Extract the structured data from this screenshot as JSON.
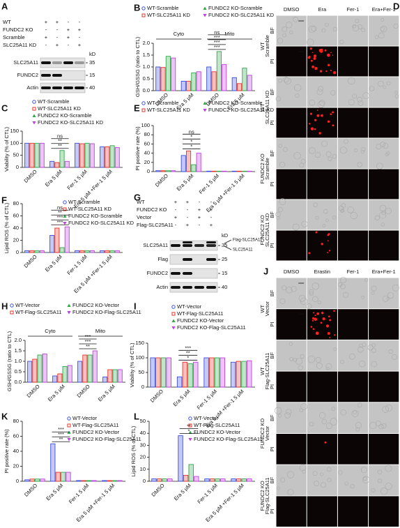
{
  "blots": [
    {
      "panel": "A",
      "unit": "kD",
      "conditions": [
        {
          "label": "WT",
          "signs": [
            "+",
            "+",
            "-",
            "-"
          ]
        },
        {
          "label": "FUNDC2 KO",
          "signs": [
            "-",
            "-",
            "+",
            "+"
          ]
        },
        {
          "label": "Scramble",
          "signs": [
            "+",
            "-",
            "+",
            "-"
          ]
        },
        {
          "label": "SLC25A11 KD",
          "signs": [
            "-",
            "+",
            "-",
            "+"
          ]
        }
      ],
      "bands": [
        {
          "label": "SLC25A11",
          "kd": 35
        },
        {
          "label": "FUNDC2",
          "kd": 15
        },
        {
          "label": "Actin",
          "kd": 40
        }
      ]
    },
    {
      "panel": "G",
      "unit": "kD",
      "conditions": [
        {
          "label": "WT",
          "signs": [
            "+",
            "+",
            "-",
            "-"
          ]
        },
        {
          "label": "FUNDC2 KO",
          "signs": [
            "-",
            "-",
            "+",
            "+"
          ]
        },
        {
          "label": "Vector",
          "signs": [
            "+",
            "-",
            "+",
            "-"
          ]
        },
        {
          "label": "Flag-SLC25A11",
          "signs": [
            "-",
            "+",
            "-",
            "+"
          ]
        }
      ],
      "bands": [
        {
          "label": "SLC25A11",
          "kd": 35
        },
        {
          "label": "Flag",
          "kd": 25
        },
        {
          "label": "FUNDC2",
          "kd": 15
        },
        {
          "label": "Actin",
          "kd": 40
        }
      ],
      "side_labels": [
        "Flag-SLC25A11",
        "SLC25A11"
      ]
    }
  ],
  "image_grids": [
    {
      "panel": "D",
      "columns": [
        "DMSO",
        "Era",
        "Fer-1",
        "Era+Fer-1"
      ],
      "channels": [
        "BF",
        "PI"
      ],
      "groups": [
        [
          "WT",
          "Scramble"
        ],
        [
          "WT",
          "SLC25A11 KD"
        ],
        [
          "FUNDC2 KO",
          "Scramble"
        ],
        [
          "FUNDC2 KO",
          "SLC25A11 KD"
        ]
      ]
    },
    {
      "panel": "J",
      "columns": [
        "DMSO",
        "Erastin",
        "Fer-1",
        "Era+Fer-1"
      ],
      "channels": [
        "BF",
        "PI"
      ],
      "groups": [
        [
          "WT",
          "Vector"
        ],
        [
          "WT",
          "Flag-SLC25A11"
        ],
        [
          "FUNDC2 KO",
          "Vector"
        ],
        [
          "FUNDC2 KO",
          "Flag-SLC25A11"
        ]
      ]
    }
  ],
  "chart_data": [
    {
      "type": "bar",
      "panel": "B",
      "ylabel": "GSH/GSSG (ratio to CTL)",
      "groups": [
        "Cyto",
        "Mito"
      ],
      "categories": [
        "DMSO",
        "Era 5 μM",
        "DMSO",
        "Era 5 μM"
      ],
      "ylim": [
        0,
        2
      ],
      "yticks": [
        {
          "value": 0,
          "label": "0.0"
        },
        0.5,
        {
          "value": 1,
          "label": "1.0"
        },
        1.5,
        {
          "value": 2,
          "label": "2.0"
        }
      ],
      "annotations": [
        "ns",
        "***",
        "***",
        "***"
      ],
      "series": [
        {
          "name": "WT-Scramble",
          "color": "#3b4de0",
          "values": [
            1.0,
            0.4,
            1.0,
            0.55
          ]
        },
        {
          "name": "WT-SLC25A11 KD",
          "color": "#e5332a",
          "values": [
            0.98,
            0.4,
            0.8,
            0.3
          ]
        },
        {
          "name": "FUNDC2 KO-Scramble",
          "color": "#2eaa48",
          "values": [
            1.45,
            0.75,
            1.65,
            0.95
          ]
        },
        {
          "name": "FUNDC2 KO-SLC25A11 KD",
          "color": "#c03fe0",
          "values": [
            1.38,
            0.8,
            1.1,
            0.65
          ]
        }
      ]
    },
    {
      "type": "bar",
      "panel": "C",
      "ylabel": "Viability (% of CTL)",
      "categories": [
        "DMSO",
        "Era 5 μM",
        "Fer-1 5 μM",
        "Era 5 μM +Fer-1 5 μM"
      ],
      "ylim": [
        0,
        150
      ],
      "yticks": [
        0,
        50,
        100,
        150
      ],
      "annotations": [
        "ns",
        "**",
        "**"
      ],
      "series": [
        {
          "name": "WT-Scramble",
          "color": "#3b4de0",
          "values": [
            100,
            25,
            100,
            85
          ]
        },
        {
          "name": "WT-SLC25A11 KD",
          "color": "#e5332a",
          "values": [
            100,
            20,
            98,
            85
          ]
        },
        {
          "name": "FUNDC2 KO-Scramble",
          "color": "#2eaa48",
          "values": [
            100,
            70,
            100,
            90
          ]
        },
        {
          "name": "FUNDC2 KO-SLC25A11 KD",
          "color": "#c03fe0",
          "values": [
            100,
            25,
            98,
            82
          ]
        }
      ]
    },
    {
      "type": "bar",
      "panel": "E",
      "ylabel": "PI positive rate (%)",
      "categories": [
        "DMSO",
        "Era 5 μM",
        "Fer-1 5 μM",
        "Era 5 μM +Fer-1 5 μM"
      ],
      "ylim": [
        0,
        100
      ],
      "yticks": [
        0,
        20,
        40,
        60,
        80,
        100
      ],
      "annotations": [
        "ns",
        "*",
        "*",
        "*"
      ],
      "series": [
        {
          "name": "WT-Scramble",
          "color": "#3b4de0",
          "values": [
            2,
            35,
            1,
            1
          ]
        },
        {
          "name": "WT-SLC25A11 KD",
          "color": "#e5332a",
          "values": [
            2,
            45,
            1,
            1
          ]
        },
        {
          "name": "FUNDC2 KO-Scramble",
          "color": "#2eaa48",
          "values": [
            2,
            15,
            1,
            1
          ]
        },
        {
          "name": "FUNDC2 KO-SLC25A11 KD",
          "color": "#c03fe0",
          "values": [
            2,
            40,
            1,
            1
          ]
        }
      ]
    },
    {
      "type": "bar",
      "panel": "F",
      "ylabel": "Lipid ROS (% of CTL)",
      "categories": [
        "DMSO",
        "Era 5 μM",
        "Fer-1 5 μM",
        "Era 5 μM +Fer-1 5 μM"
      ],
      "ylim": [
        0,
        80
      ],
      "yticks": [
        0,
        20,
        40,
        60,
        80
      ],
      "annotations": [
        "ns",
        "**",
        "***",
        "***"
      ],
      "series": [
        {
          "name": "WT-Scramble",
          "color": "#3b4de0",
          "values": [
            3,
            28,
            3,
            3
          ]
        },
        {
          "name": "WT-SLC25A11 KD",
          "color": "#e5332a",
          "values": [
            3,
            40,
            3,
            3
          ]
        },
        {
          "name": "FUNDC2 KO-Scramble",
          "color": "#2eaa48",
          "values": [
            3,
            8,
            3,
            3
          ]
        },
        {
          "name": "FUNDC2 KO-SLC25A11 KD",
          "color": "#c03fe0",
          "values": [
            3,
            42,
            3,
            3
          ]
        }
      ]
    },
    {
      "type": "bar",
      "panel": "H",
      "ylabel": "GSH/GSSG (ratio to CTL)",
      "groups": [
        "Cyto",
        "Mito"
      ],
      "categories": [
        "DMSO",
        "Era 5 μM",
        "DMSO",
        "Era 5 μM"
      ],
      "ylim": [
        0,
        2
      ],
      "yticks": [
        {
          "value": 0,
          "label": "0.0"
        },
        0.5,
        {
          "value": 1,
          "label": "1.0"
        },
        1.5,
        {
          "value": 2,
          "label": "2.0"
        }
      ],
      "annotations": [
        "***",
        "***",
        "**"
      ],
      "series": [
        {
          "name": "WT-Vector",
          "color": "#3b4de0",
          "values": [
            1.0,
            0.3,
            1.0,
            0.25
          ]
        },
        {
          "name": "WT-Flag-SLC25A11",
          "color": "#e5332a",
          "values": [
            1.1,
            0.4,
            1.3,
            0.6
          ]
        },
        {
          "name": "FUNDC2 KO-Vector",
          "color": "#2eaa48",
          "values": [
            1.3,
            0.75,
            1.3,
            0.6
          ]
        },
        {
          "name": "FUNDC2 KO-Flag-SLC25A11",
          "color": "#c03fe0",
          "values": [
            1.35,
            0.8,
            1.5,
            0.6
          ]
        }
      ]
    },
    {
      "type": "bar",
      "panel": "I",
      "ylabel": "Viability (% of CTL)",
      "categories": [
        "DMSO",
        "Era 5 μM",
        "Fer-1 5 μM",
        "Era 5 μM +Fer-1 5 μM"
      ],
      "ylim": [
        0,
        150
      ],
      "yticks": [
        0,
        50,
        100,
        150
      ],
      "annotations": [
        "***",
        "**",
        "*"
      ],
      "series": [
        {
          "name": "WT-Vector",
          "color": "#3b4de0",
          "values": [
            100,
            35,
            100,
            85
          ]
        },
        {
          "name": "WT-Flag-SLC25A11",
          "color": "#e5332a",
          "values": [
            100,
            85,
            100,
            88
          ]
        },
        {
          "name": "FUNDC2 KO-Vector",
          "color": "#2eaa48",
          "values": [
            100,
            80,
            100,
            88
          ]
        },
        {
          "name": "FUNDC2 KO-Flag-SLC25A11",
          "color": "#c03fe0",
          "values": [
            100,
            85,
            100,
            90
          ]
        }
      ]
    },
    {
      "type": "bar",
      "panel": "K",
      "ylabel": "PI positive rate (%)",
      "categories": [
        "DMSO",
        "Era 5 μM",
        "Fer-1 5 μM",
        "Era 5 μM +Fer-1 5 μM"
      ],
      "ylim": [
        0,
        80
      ],
      "yticks": [
        0,
        20,
        40,
        60,
        80
      ],
      "annotations": [
        "***",
        "***",
        "**"
      ],
      "series": [
        {
          "name": "WT-Vector",
          "color": "#3b4de0",
          "values": [
            2,
            50,
            1,
            1
          ]
        },
        {
          "name": "WT-Flag-SLC25A11",
          "color": "#e5332a",
          "values": [
            3,
            12,
            1,
            1
          ]
        },
        {
          "name": "FUNDC2 KO-Vector",
          "color": "#2eaa48",
          "values": [
            3,
            12,
            1,
            1
          ]
        },
        {
          "name": "FUNDC2 KO-Flag-SLC25A11",
          "color": "#c03fe0",
          "values": [
            3,
            12,
            1,
            1
          ]
        }
      ]
    },
    {
      "type": "bar",
      "panel": "L",
      "ylabel": "Lipid ROS (% of CTL)",
      "categories": [
        "DMSO",
        "Era 5 μM",
        "Fer-1 5 μM",
        "Era 5 μM +Fer-1 5 μM"
      ],
      "ylim": [
        0,
        50
      ],
      "yticks": [
        0,
        10,
        20,
        30,
        40,
        50
      ],
      "annotations": [
        "**",
        "*"
      ],
      "series": [
        {
          "name": "WT-Vector",
          "color": "#3b4de0",
          "values": [
            2,
            38,
            2,
            2
          ]
        },
        {
          "name": "WT-Flag-SLC25A11",
          "color": "#e5332a",
          "values": [
            2,
            5,
            2,
            2
          ]
        },
        {
          "name": "FUNDC2 KO-Vector",
          "color": "#2eaa48",
          "values": [
            2,
            14,
            2,
            2
          ]
        },
        {
          "name": "FUNDC2 KO-Flag-SLC25A11",
          "color": "#c03fe0",
          "values": [
            2,
            4,
            2,
            2
          ]
        }
      ]
    }
  ]
}
